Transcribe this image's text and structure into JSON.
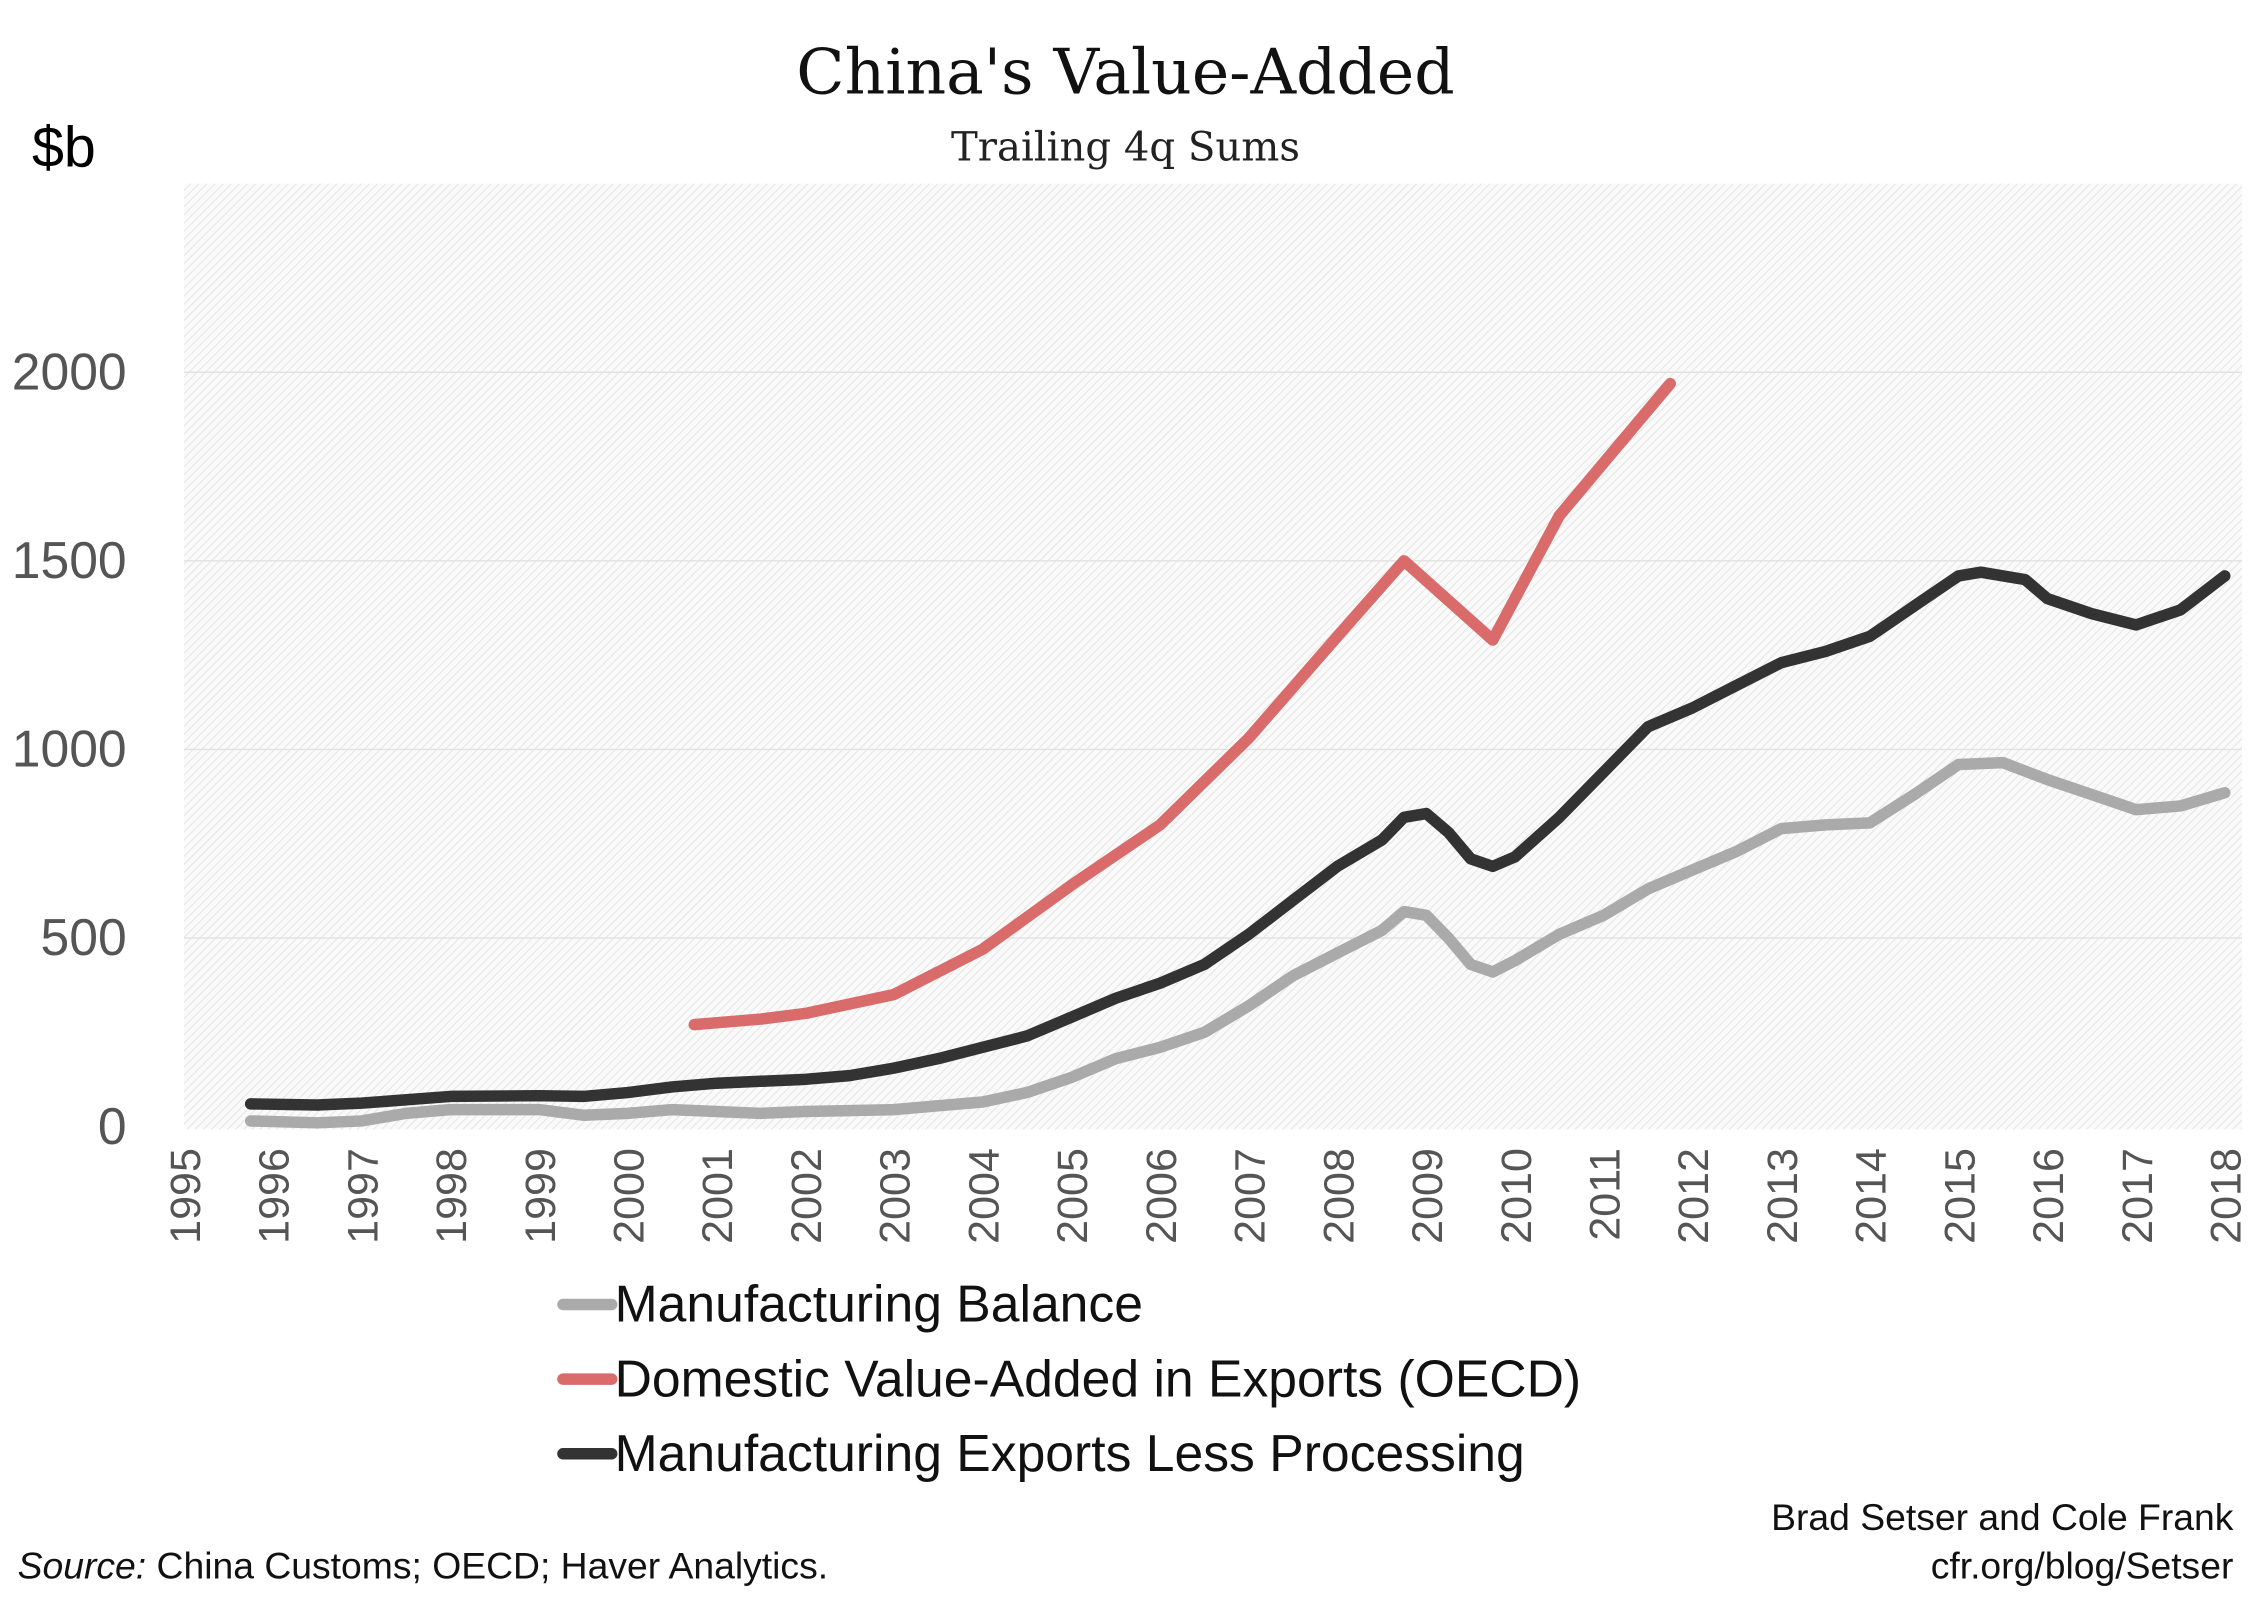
{
  "chart_data": {
    "type": "line",
    "title": "China's Value-Added",
    "subtitle": "Trailing 4q Sums",
    "ylabel": "$b",
    "xlabel": "",
    "xlim": [
      1995,
      2018
    ],
    "ylim": [
      0,
      2500
    ],
    "x_ticks": [
      "1995",
      "1996",
      "1997",
      "1998",
      "1999",
      "2000",
      "2001",
      "2002",
      "2003",
      "2004",
      "2005",
      "2006",
      "2007",
      "2008",
      "2009",
      "2010",
      "2011",
      "2012",
      "2013",
      "2014",
      "2015",
      "2016",
      "2017",
      "2018"
    ],
    "y_ticks": [
      "0",
      "500",
      "1000",
      "1500",
      "2000"
    ],
    "grid": true,
    "legend_position": "bottom",
    "series": [
      {
        "name": "Manufacturing Balance",
        "color": "#aaaaaa",
        "points": [
          [
            1995.75,
            15
          ],
          [
            1996.5,
            10
          ],
          [
            1997,
            15
          ],
          [
            1997.5,
            35
          ],
          [
            1998,
            45
          ],
          [
            1999,
            45
          ],
          [
            1999.5,
            30
          ],
          [
            2000,
            35
          ],
          [
            2000.5,
            45
          ],
          [
            2001,
            40
          ],
          [
            2001.5,
            35
          ],
          [
            2002,
            40
          ],
          [
            2003,
            45
          ],
          [
            2003.5,
            55
          ],
          [
            2004,
            65
          ],
          [
            2004.5,
            90
          ],
          [
            2005,
            130
          ],
          [
            2005.5,
            180
          ],
          [
            2006,
            210
          ],
          [
            2006.5,
            250
          ],
          [
            2007,
            320
          ],
          [
            2007.5,
            400
          ],
          [
            2008,
            460
          ],
          [
            2008.5,
            520
          ],
          [
            2008.75,
            570
          ],
          [
            2009,
            560
          ],
          [
            2009.25,
            500
          ],
          [
            2009.5,
            430
          ],
          [
            2009.75,
            410
          ],
          [
            2010,
            440
          ],
          [
            2010.5,
            510
          ],
          [
            2011,
            560
          ],
          [
            2011.5,
            630
          ],
          [
            2012,
            680
          ],
          [
            2012.5,
            730
          ],
          [
            2013,
            790
          ],
          [
            2013.5,
            800
          ],
          [
            2014,
            805
          ],
          [
            2014.5,
            880
          ],
          [
            2015,
            960
          ],
          [
            2015.5,
            965
          ],
          [
            2016,
            920
          ],
          [
            2016.5,
            880
          ],
          [
            2017,
            840
          ],
          [
            2017.5,
            850
          ],
          [
            2018,
            885
          ]
        ]
      },
      {
        "name": "Domestic Value-Added in Exports (OECD)",
        "color": "#d96b6b",
        "points": [
          [
            2000.75,
            270
          ],
          [
            2001.5,
            285
          ],
          [
            2002,
            300
          ],
          [
            2003,
            350
          ],
          [
            2004,
            470
          ],
          [
            2005,
            640
          ],
          [
            2006,
            800
          ],
          [
            2007,
            1030
          ],
          [
            2008,
            1300
          ],
          [
            2008.75,
            1500
          ],
          [
            2009.75,
            1290
          ],
          [
            2010.5,
            1620
          ],
          [
            2011.75,
            1970
          ]
        ]
      },
      {
        "name": "Manufacturing Exports Less Processing",
        "color": "#333333",
        "points": [
          [
            1995.75,
            60
          ],
          [
            1996.5,
            57
          ],
          [
            1997,
            62
          ],
          [
            1998,
            80
          ],
          [
            1999,
            82
          ],
          [
            1999.5,
            80
          ],
          [
            2000,
            90
          ],
          [
            2000.5,
            105
          ],
          [
            2001,
            115
          ],
          [
            2002,
            125
          ],
          [
            2002.5,
            135
          ],
          [
            2003,
            155
          ],
          [
            2003.5,
            180
          ],
          [
            2004,
            210
          ],
          [
            2004.5,
            240
          ],
          [
            2005,
            290
          ],
          [
            2005.5,
            340
          ],
          [
            2006,
            380
          ],
          [
            2006.5,
            430
          ],
          [
            2007,
            510
          ],
          [
            2007.5,
            600
          ],
          [
            2008,
            690
          ],
          [
            2008.5,
            760
          ],
          [
            2008.75,
            820
          ],
          [
            2009,
            830
          ],
          [
            2009.25,
            780
          ],
          [
            2009.5,
            710
          ],
          [
            2009.75,
            690
          ],
          [
            2010,
            715
          ],
          [
            2010.5,
            820
          ],
          [
            2011,
            940
          ],
          [
            2011.5,
            1060
          ],
          [
            2012,
            1110
          ],
          [
            2012.5,
            1170
          ],
          [
            2013,
            1230
          ],
          [
            2013.5,
            1260
          ],
          [
            2014,
            1300
          ],
          [
            2014.5,
            1380
          ],
          [
            2015,
            1460
          ],
          [
            2015.25,
            1470
          ],
          [
            2015.75,
            1450
          ],
          [
            2016,
            1400
          ],
          [
            2016.5,
            1360
          ],
          [
            2017,
            1330
          ],
          [
            2017.5,
            1370
          ],
          [
            2018,
            1460
          ]
        ]
      }
    ]
  },
  "footer": {
    "source_label": "Source:",
    "source_text": " China Customs; OECD; Haver Analytics.",
    "author": "Brad Setser and Cole Frank",
    "url": "cfr.org/blog/Setser"
  }
}
